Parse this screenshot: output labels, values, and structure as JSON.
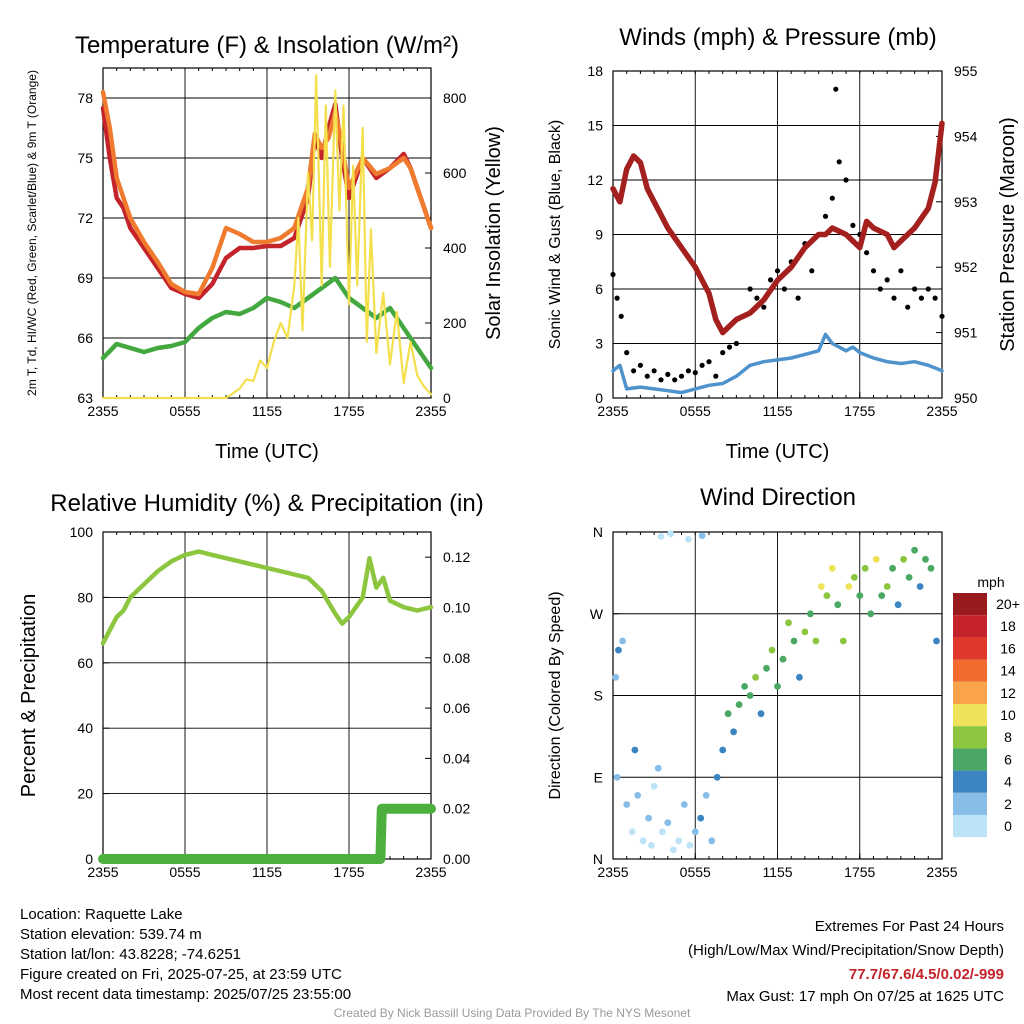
{
  "footer": {
    "location": "Location: Raquette Lake",
    "elevation": "Station elevation: 539.74 m",
    "latlon": "Station lat/lon: 43.8228; -74.6251",
    "created": "Figure created on Fri, 2025-07-25, at 23:59 UTC",
    "recent": "Most recent data timestamp: 2025/07/25 23:55:00",
    "extremes_title": "Extremes For Past 24 Hours",
    "extremes_fields": "(High/Low/Max Wind/Precipitation/Snow Depth)",
    "extremes_values": "77.7/67.6/4.5/0.02/-999",
    "max_gust": "Max Gust: 17 mph On 07/25 at 1625 UTC",
    "credit": "Created By Nick Bassill Using Data Provided By The NYS Mesonet"
  },
  "colors": {
    "temp_red": "#c4232a",
    "temp_orange": "#f07b2e",
    "dewpoint_green": "#43a83f",
    "insolation_yellow": "#f4e04d",
    "wind_blue": "#4f93cd",
    "gust_black": "#000000",
    "pressure_maroon": "#a3201e",
    "rh_green": "#8cc63f",
    "precip_green": "#4caf3e",
    "extremes_red": "#c4232a"
  },
  "chart_data": [
    {
      "type": "line",
      "title": "Temperature (F) & Insolation (W/m²)",
      "xlabel": "Time (UTC)",
      "ylabel": "2m T, Td, HI/WC (Red, Green, Scarlet/Blue) & 9m T (Orange)",
      "ylabel2": "Solar Insolation (Yellow)",
      "xticks": [
        "2355",
        "0555",
        "1155",
        "1755",
        "2355"
      ],
      "ylim": [
        63,
        79.5
      ],
      "yticks": [
        63,
        66,
        69,
        72,
        75,
        78
      ],
      "ylim2": [
        0,
        880
      ],
      "yticks2": [
        0,
        200,
        400,
        600,
        800
      ],
      "grid": true,
      "series": [
        {
          "name": "2m T",
          "color": "#c4232a",
          "axis": "left",
          "x": [
            0,
            0.5,
            1,
            1.5,
            2,
            3,
            4,
            5,
            6,
            7,
            8,
            9,
            10,
            11,
            12,
            13,
            14,
            15,
            15.5,
            16,
            16.5,
            17,
            17.5,
            18,
            19,
            20,
            21,
            22,
            22.5,
            23,
            23.5,
            24
          ],
          "y": [
            77.5,
            75.0,
            73.0,
            72.5,
            71.5,
            70.5,
            69.5,
            68.5,
            68.2,
            68.0,
            68.7,
            70.0,
            70.5,
            70.5,
            70.6,
            70.6,
            71.0,
            73.0,
            76.0,
            75.0,
            76.5,
            77.7,
            75.0,
            73.0,
            75.0,
            74.0,
            74.5,
            75.2,
            74.5,
            73.5,
            72.5,
            71.5
          ]
        },
        {
          "name": "9m T",
          "color": "#f07b2e",
          "axis": "left",
          "x": [
            0,
            0.5,
            1,
            1.5,
            2,
            3,
            4,
            5,
            6,
            7,
            8,
            9,
            10,
            11,
            12,
            13,
            14,
            15,
            15.5,
            16,
            16.5,
            17,
            17.5,
            18,
            19,
            20,
            21,
            22,
            22.5,
            23,
            23.5,
            24
          ],
          "y": [
            78.3,
            76.5,
            74.0,
            73.0,
            72.0,
            70.8,
            69.8,
            68.7,
            68.3,
            68.2,
            69.5,
            71.5,
            71.2,
            70.8,
            70.8,
            71.0,
            71.5,
            73.5,
            76.2,
            75.5,
            76.0,
            77.3,
            75.5,
            73.5,
            75.0,
            74.2,
            74.5,
            75.0,
            74.5,
            73.5,
            72.5,
            71.5
          ]
        },
        {
          "name": "2m Td",
          "color": "#43a83f",
          "axis": "left",
          "x": [
            0,
            1,
            2,
            3,
            4,
            5,
            6,
            7,
            8,
            9,
            10,
            11,
            12,
            13,
            14,
            15,
            16,
            17,
            18,
            19,
            20,
            21,
            22,
            23,
            24
          ],
          "y": [
            65.0,
            65.7,
            65.5,
            65.3,
            65.5,
            65.6,
            65.8,
            66.5,
            67.0,
            67.3,
            67.2,
            67.5,
            68.0,
            67.8,
            67.5,
            68.0,
            68.5,
            69.0,
            68.0,
            67.5,
            67.0,
            67.5,
            66.5,
            65.5,
            64.5
          ]
        },
        {
          "name": "Solar Insolation",
          "color": "#f4e04d",
          "axis": "right",
          "x": [
            0,
            6,
            9,
            10,
            10.5,
            11,
            11.5,
            12,
            12.5,
            13,
            13.5,
            14,
            14.3,
            14.6,
            15,
            15.3,
            15.6,
            16,
            16.3,
            16.6,
            17,
            17.3,
            17.6,
            18,
            18.3,
            18.6,
            19,
            19.3,
            19.6,
            20,
            20.5,
            21,
            21.5,
            22,
            22.5,
            23,
            23.5,
            24
          ],
          "y": [
            0,
            0,
            0,
            25,
            50,
            45,
            100,
            80,
            150,
            200,
            160,
            300,
            480,
            180,
            600,
            420,
            860,
            300,
            780,
            350,
            820,
            500,
            780,
            250,
            620,
            300,
            720,
            150,
            450,
            120,
            280,
            90,
            230,
            40,
            150,
            60,
            30,
            10
          ]
        }
      ]
    },
    {
      "type": "scatter",
      "title": "Winds (mph) & Pressure (mb)",
      "xlabel": "Time (UTC)",
      "ylabel": "Sonic Wind & Gust (Blue, Black)",
      "ylabel2": "Station Pressure (Maroon)",
      "xticks": [
        "2355",
        "0555",
        "1155",
        "1755",
        "2355"
      ],
      "ylim": [
        0,
        18
      ],
      "yticks": [
        0,
        3,
        6,
        9,
        12,
        15,
        18
      ],
      "ylim2": [
        950,
        955
      ],
      "yticks2": [
        950,
        951,
        952,
        953,
        954,
        955
      ],
      "grid": true,
      "series": [
        {
          "name": "Sonic Wind",
          "color": "#4f93cd",
          "axis": "left",
          "kind": "line",
          "x": [
            0,
            0.5,
            1,
            2,
            3,
            4,
            5,
            6,
            7,
            8,
            9,
            10,
            11,
            12,
            13,
            14,
            15,
            15.5,
            16,
            16.5,
            17,
            17.5,
            18,
            19,
            20,
            21,
            22,
            23,
            24
          ],
          "y": [
            1.5,
            1.8,
            0.5,
            0.6,
            0.5,
            0.4,
            0.3,
            0.5,
            0.7,
            0.8,
            1.2,
            1.8,
            2.0,
            2.1,
            2.2,
            2.4,
            2.6,
            3.5,
            3.0,
            2.8,
            2.6,
            2.8,
            2.5,
            2.2,
            2.0,
            1.9,
            2.0,
            1.8,
            1.5
          ]
        },
        {
          "name": "Gust",
          "color": "#000000",
          "axis": "left",
          "kind": "scatter",
          "x": [
            0,
            0.3,
            0.6,
            1,
            1.5,
            2,
            2.5,
            3,
            3.5,
            4,
            4.5,
            5,
            5.5,
            6,
            6.5,
            7,
            7.5,
            8,
            8.5,
            9,
            9.5,
            10,
            10.5,
            11,
            11.5,
            12,
            12.5,
            13,
            13.5,
            14,
            14.5,
            15,
            15.5,
            16,
            16.25,
            16.5,
            17,
            17.5,
            18,
            18.5,
            19,
            19.5,
            20,
            20.5,
            21,
            21.5,
            22,
            22.5,
            23,
            23.5,
            24
          ],
          "y": [
            6.8,
            5.5,
            4.5,
            2.5,
            1.5,
            1.8,
            1.2,
            1.5,
            1.0,
            1.3,
            1.0,
            1.2,
            1.5,
            1.4,
            1.8,
            2.0,
            1.2,
            2.5,
            2.8,
            3.0,
            4.5,
            6.0,
            5.5,
            5.0,
            6.5,
            7.0,
            6.0,
            7.5,
            5.5,
            8.5,
            7.0,
            9.0,
            10.0,
            11.0,
            17.0,
            13.0,
            12.0,
            9.5,
            9.0,
            8.0,
            7.0,
            6.0,
            6.5,
            5.5,
            7.0,
            5.0,
            6.0,
            5.5,
            6.0,
            5.5,
            4.5
          ]
        },
        {
          "name": "Station Pressure",
          "color": "#a3201e",
          "axis": "right",
          "kind": "line",
          "x": [
            0,
            0.5,
            1,
            1.5,
            2,
            2.5,
            3,
            3.5,
            4,
            5,
            6,
            7,
            7.5,
            8,
            9,
            10,
            11,
            12,
            13,
            14,
            15,
            15.5,
            16,
            17,
            18,
            18.5,
            19,
            20,
            20.5,
            21,
            22,
            23,
            23.5,
            24
          ],
          "y": [
            953.2,
            953.0,
            953.5,
            953.7,
            953.6,
            953.2,
            953.0,
            952.8,
            952.6,
            952.3,
            952.0,
            951.6,
            951.2,
            951.0,
            951.2,
            951.3,
            951.5,
            951.8,
            952.0,
            952.3,
            952.5,
            952.5,
            952.6,
            952.5,
            952.3,
            952.7,
            952.6,
            952.5,
            952.3,
            952.4,
            952.6,
            952.9,
            953.3,
            954.2
          ]
        }
      ]
    },
    {
      "type": "line",
      "title": "Relative Humidity (%) & Precipitation (in)",
      "xlabel": "",
      "ylabel": "Percent & Precipitation",
      "xticks": [
        "2355",
        "0555",
        "1155",
        "1755",
        "2355"
      ],
      "ylim": [
        0,
        100
      ],
      "yticks": [
        0,
        20,
        40,
        60,
        80,
        100
      ],
      "ylim2": [
        0,
        0.13
      ],
      "yticks2": [
        "0.00",
        "0.02",
        "0.04",
        "0.06",
        "0.08",
        "0.10",
        "0.12"
      ],
      "grid": true,
      "series": [
        {
          "name": "Relative Humidity",
          "color": "#8cc63f",
          "axis": "left",
          "x": [
            0,
            0.5,
            1,
            1.5,
            2,
            3,
            4,
            5,
            6,
            7,
            8,
            9,
            10,
            11,
            12,
            13,
            14,
            15,
            16,
            17,
            17.5,
            18,
            19,
            19.5,
            20,
            20.5,
            21,
            22,
            23,
            24
          ],
          "y": [
            66,
            70,
            74,
            76,
            80,
            84,
            88,
            91,
            93,
            94,
            93,
            92,
            91,
            90,
            89,
            88,
            87,
            86,
            82,
            75,
            72,
            74,
            80,
            92,
            83,
            86,
            79,
            77,
            76,
            77
          ]
        },
        {
          "name": "Precipitation",
          "color": "#4caf3e",
          "axis": "right",
          "x": [
            0,
            20.3,
            20.4,
            24
          ],
          "y": [
            0.0,
            0.0,
            0.02,
            0.02
          ]
        }
      ]
    },
    {
      "type": "scatter",
      "title": "Wind Direction",
      "xlabel": "",
      "ylabel": "Direction (Colored By Speed)",
      "xticks": [
        "2355",
        "0555",
        "1155",
        "1755",
        "2355"
      ],
      "yticks": [
        "N",
        "E",
        "S",
        "W",
        "N"
      ],
      "ylim": [
        0,
        360
      ],
      "grid": true,
      "legend": {
        "title": "mph",
        "labels": [
          "20+",
          "18",
          "16",
          "14",
          "12",
          "10",
          "8",
          "6",
          "4",
          "2",
          "0"
        ],
        "colors": [
          "#981b1e",
          "#c4232a",
          "#e0392b",
          "#f26b2e",
          "#f9a44a",
          "#efe25b",
          "#8cc63f",
          "#4aa864",
          "#3a85c2",
          "#87bde6",
          "#bde3f7"
        ],
        "placement": "right"
      },
      "series": [
        {
          "name": "Direction",
          "x": [
            0.2,
            0.4,
            0.7,
            1.0,
            1.4,
            1.8,
            2.2,
            2.6,
            3.0,
            3.3,
            3.6,
            4.0,
            4.4,
            4.8,
            5.2,
            5.6,
            6.0,
            6.4,
            6.8,
            7.2,
            7.6,
            8.0,
            8.4,
            8.8,
            9.2,
            9.6,
            10.0,
            10.4,
            10.8,
            11.2,
            11.6,
            12.0,
            12.4,
            12.8,
            13.2,
            13.6,
            14.0,
            14.4,
            14.8,
            15.2,
            15.6,
            16.0,
            16.4,
            16.8,
            17.2,
            17.6,
            18.0,
            18.4,
            18.8,
            19.2,
            19.6,
            20.0,
            20.4,
            20.8,
            21.2,
            21.6,
            22.0,
            22.4,
            22.8,
            23.2,
            23.6,
            3.5,
            4.2,
            5.5,
            6.5,
            2.8,
            1.6,
            0.3
          ],
          "y": [
            200,
            230,
            240,
            60,
            30,
            70,
            20,
            45,
            80,
            100,
            30,
            40,
            10,
            20,
            60,
            15,
            30,
            45,
            70,
            20,
            90,
            120,
            160,
            140,
            170,
            190,
            180,
            200,
            160,
            210,
            230,
            190,
            220,
            260,
            240,
            200,
            250,
            270,
            240,
            300,
            290,
            320,
            280,
            240,
            300,
            310,
            290,
            320,
            270,
            330,
            290,
            300,
            320,
            280,
            330,
            310,
            340,
            300,
            330,
            320,
            240,
            355,
            358,
            352,
            356,
            15,
            120,
            90
          ],
          "speed": [
            1,
            2,
            1,
            1,
            0,
            1,
            0,
            1,
            0,
            1,
            0,
            1,
            0,
            0,
            1,
            0,
            1,
            2,
            1,
            1,
            2,
            2,
            3,
            2,
            3,
            3,
            3,
            4,
            2,
            3,
            4,
            3,
            3,
            4,
            3,
            2,
            4,
            3,
            4,
            5,
            4,
            5,
            3,
            4,
            5,
            4,
            3,
            4,
            3,
            5,
            3,
            4,
            3,
            2,
            4,
            3,
            3,
            2,
            3,
            3,
            2,
            0,
            0,
            0,
            1,
            0,
            2,
            1
          ]
        }
      ]
    }
  ]
}
